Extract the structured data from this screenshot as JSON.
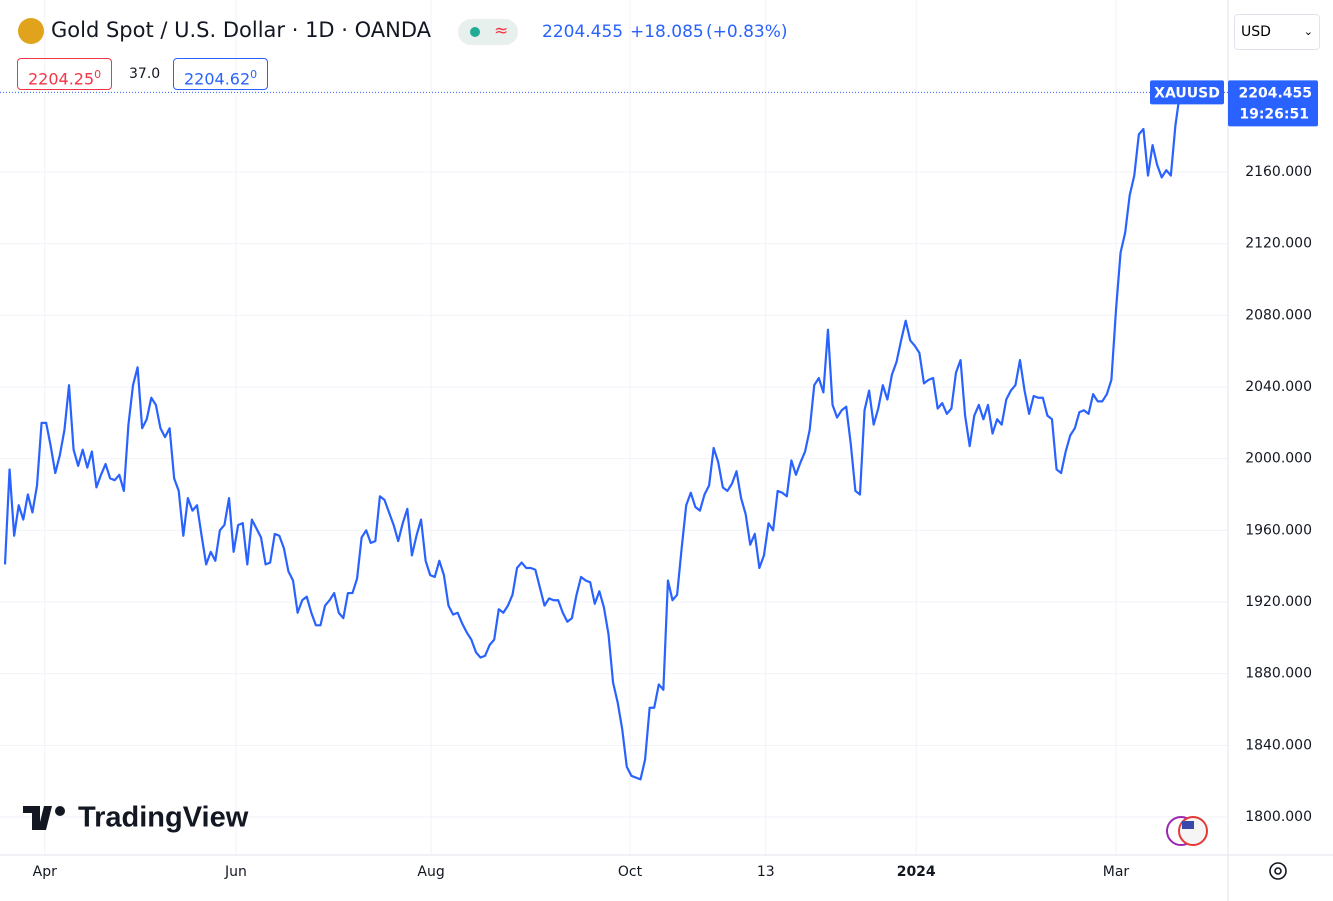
{
  "header": {
    "symbol_title": "Gold Spot / U.S. Dollar · 1D · OANDA",
    "last": "2204.455",
    "change": "+18.085",
    "change_pct": "(+0.83%)",
    "bid": "2204.25",
    "bid_tail": "0",
    "spread": "37.0",
    "ask": "2204.62",
    "ask_tail": "0",
    "currency": "USD",
    "price_time": "19:26:51",
    "branding": "TradingView"
  },
  "chart_data": {
    "type": "line",
    "series": [
      {
        "name": "XAUUSD",
        "color": "#2962ff",
        "values": [
          1941,
          1994,
          1957,
          1974,
          1966,
          1980,
          1970,
          1985,
          2020,
          2020,
          2007,
          1992,
          2002,
          2016,
          2041,
          2005,
          1996,
          2005,
          1995,
          2004,
          1984,
          1991,
          1997,
          1989,
          1988,
          1991,
          1982,
          2019,
          2041,
          2051,
          2017,
          2022,
          2034,
          2030,
          2017,
          2012,
          2017,
          1989,
          1982,
          1957,
          1978,
          1971,
          1974,
          1957,
          1941,
          1948,
          1943,
          1960,
          1963,
          1978,
          1948,
          1963,
          1964,
          1941,
          1966,
          1961,
          1956,
          1941,
          1942,
          1958,
          1957,
          1950,
          1937,
          1932,
          1914,
          1921,
          1923,
          1914,
          1907,
          1907,
          1918,
          1921,
          1925,
          1914,
          1911,
          1925,
          1925,
          1933,
          1956,
          1960,
          1953,
          1954,
          1979,
          1977,
          1970,
          1963,
          1954,
          1964,
          1972,
          1946,
          1957,
          1966,
          1943,
          1935,
          1934,
          1943,
          1935,
          1918,
          1913,
          1914,
          1908,
          1903,
          1899,
          1892,
          1889,
          1890,
          1896,
          1899,
          1916,
          1914,
          1918,
          1924,
          1939,
          1942,
          1939,
          1939,
          1938,
          1928,
          1918,
          1922,
          1921,
          1921,
          1914,
          1909,
          1911,
          1924,
          1934,
          1932,
          1931,
          1919,
          1926,
          1917,
          1902,
          1875,
          1864,
          1849,
          1828,
          1823,
          1822,
          1821,
          1832,
          1861,
          1861,
          1874,
          1871,
          1932,
          1921,
          1924,
          1950,
          1974,
          1981,
          1973,
          1971,
          1980,
          1985,
          2006,
          1998,
          1984,
          1982,
          1986,
          1993,
          1978,
          1969,
          1952,
          1958,
          1939,
          1946,
          1964,
          1960,
          1982,
          1981,
          1979,
          1999,
          1991,
          1998,
          2004,
          2016,
          2041,
          2045,
          2037,
          2072,
          2030,
          2023,
          2027,
          2029,
          2008,
          1982,
          1980,
          2027,
          2038,
          2019,
          2028,
          2041,
          2033,
          2047,
          2054,
          2066,
          2077,
          2066,
          2063,
          2059,
          2042,
          2044,
          2045,
          2028,
          2031,
          2025,
          2028,
          2048,
          2055,
          2024,
          2007,
          2024,
          2030,
          2022,
          2030,
          2014,
          2022,
          2019,
          2033,
          2038,
          2041,
          2055,
          2038,
          2025,
          2035,
          2034,
          2034,
          2024,
          2022,
          1994,
          1992,
          2004,
          2013,
          2017,
          2026,
          2027,
          2025,
          2036,
          2032,
          2032,
          2036,
          2044,
          2083,
          2115,
          2126,
          2147,
          2158,
          2181,
          2184,
          2158,
          2175,
          2164,
          2157,
          2161,
          2158,
          2186,
          2204.455
        ]
      }
    ],
    "xlim": [
      0,
      267.5
    ],
    "xticks": [
      {
        "value": 8.7,
        "label": "Apr"
      },
      {
        "value": 50.5,
        "label": "Jun"
      },
      {
        "value": 93.2,
        "label": "Aug"
      },
      {
        "value": 136.7,
        "label": "Oct"
      },
      {
        "value": 166.4,
        "label": "13"
      },
      {
        "value": 199.3,
        "label": "2024"
      },
      {
        "value": 243,
        "label": "Mar"
      }
    ],
    "ylim": [
      1778.8,
      2256
    ],
    "yticks": [
      {
        "value": 1800,
        "label": "1800.000"
      },
      {
        "value": 1840,
        "label": "1840.000"
      },
      {
        "value": 1880,
        "label": "1880.000"
      },
      {
        "value": 1920,
        "label": "1920.000"
      },
      {
        "value": 1960,
        "label": "1960.000"
      },
      {
        "value": 2000,
        "label": "2000.000"
      },
      {
        "value": 2040,
        "label": "2040.000"
      },
      {
        "value": 2080,
        "label": "2080.000"
      },
      {
        "value": 2120,
        "label": "2120.000"
      },
      {
        "value": 2160,
        "label": "2160.000"
      }
    ],
    "grid": true
  }
}
